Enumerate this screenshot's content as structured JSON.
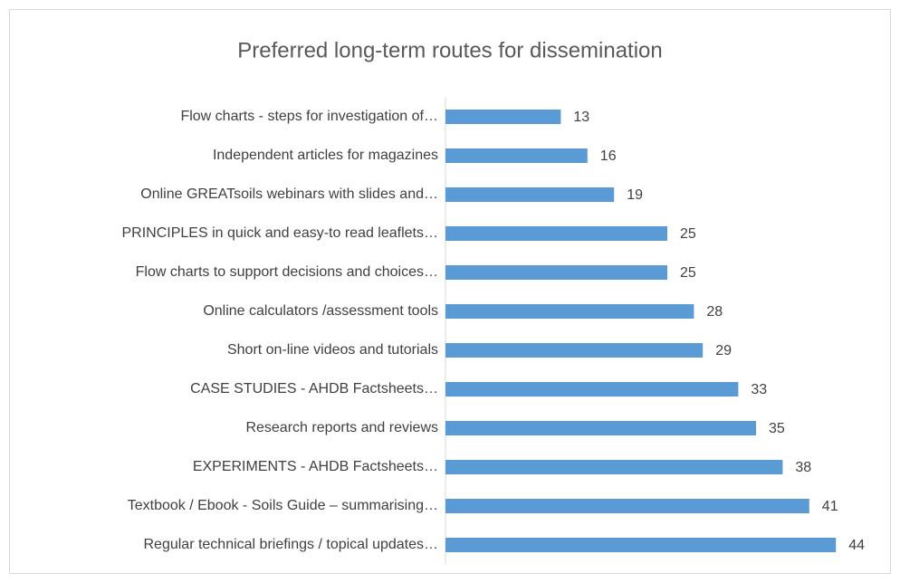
{
  "chart_data": {
    "type": "bar",
    "orientation": "horizontal",
    "title": "Preferred long-term routes for dissemination",
    "categories": [
      "Flow charts - steps for investigation of…",
      "Independent articles for magazines",
      "Online GREATsoils webinars with slides and…",
      "PRINCIPLES in quick and easy-to read leaflets…",
      "Flow charts to support decisions and choices…",
      "Online calculators /assessment tools",
      "Short on-line videos and tutorials",
      "CASE STUDIES  - AHDB Factsheets…",
      "Research reports and reviews",
      "EXPERIMENTS  - AHDB Factsheets…",
      "Textbook / Ebook - Soils Guide – summarising…",
      "Regular technical briefings / topical updates…"
    ],
    "values": [
      13,
      16,
      19,
      25,
      25,
      28,
      29,
      33,
      35,
      38,
      41,
      44
    ],
    "color": "#5b9bd5",
    "xlim": [
      0,
      50
    ]
  }
}
